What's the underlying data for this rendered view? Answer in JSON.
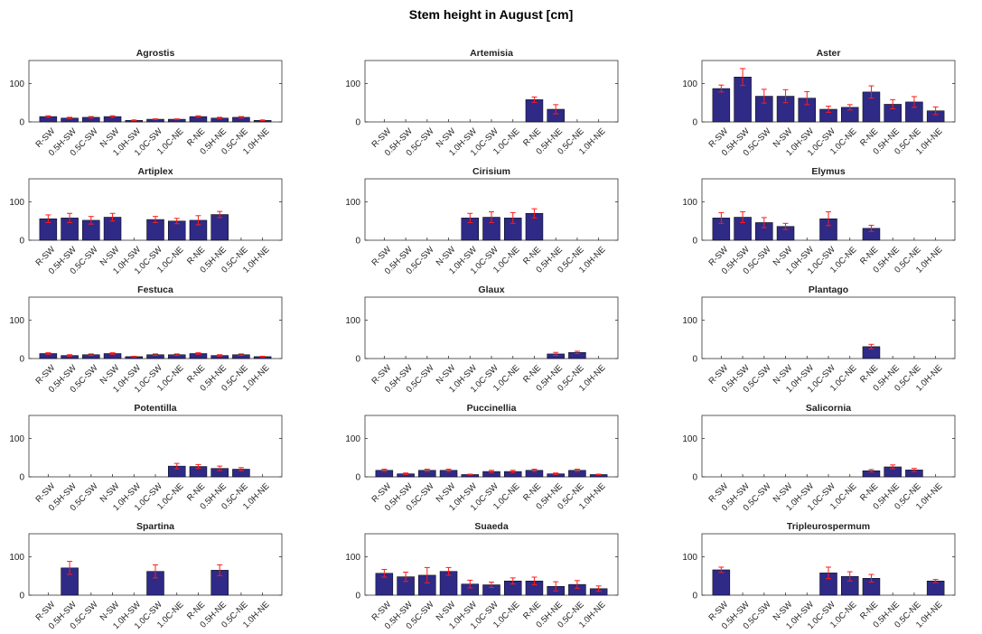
{
  "figure_title": "Stem height in August [cm]",
  "chart_data": {
    "type": "bar",
    "categories": [
      "R-SW",
      "0.5H-SW",
      "0.5C-SW",
      "N-SW",
      "1.0H-SW",
      "1.0C-SW",
      "1.0C-NE",
      "R-NE",
      "0.5H-NE",
      "0.5C-NE",
      "1.0H-NE"
    ],
    "ylim": [
      0,
      160
    ],
    "yticks": [
      0,
      100
    ],
    "colors": {
      "bar": "#2e2a86",
      "error": "#ff1a1a",
      "axis": "#333333"
    },
    "panels": [
      {
        "title": "Agrostis",
        "values": [
          14,
          10,
          12,
          14,
          4,
          7,
          7,
          14,
          10,
          12,
          4
        ],
        "errors": [
          2,
          2,
          2,
          2,
          1,
          1,
          1,
          2,
          2,
          2,
          1
        ]
      },
      {
        "title": "Artemisia",
        "values": [
          null,
          null,
          null,
          null,
          null,
          null,
          null,
          58,
          33,
          null,
          null
        ],
        "errors": [
          null,
          null,
          null,
          null,
          null,
          null,
          null,
          7,
          12,
          null,
          null
        ]
      },
      {
        "title": "Aster",
        "values": [
          87,
          117,
          67,
          67,
          62,
          33,
          38,
          78,
          46,
          52,
          29
        ],
        "errors": [
          9,
          22,
          18,
          17,
          17,
          8,
          7,
          16,
          12,
          14,
          10
        ]
      },
      {
        "title": "Artiplex",
        "values": [
          56,
          58,
          52,
          60,
          null,
          54,
          50,
          52,
          67,
          null,
          null
        ],
        "errors": [
          10,
          12,
          10,
          10,
          null,
          8,
          7,
          12,
          8,
          null,
          null
        ]
      },
      {
        "title": "Cirisium",
        "values": [
          null,
          null,
          null,
          null,
          58,
          60,
          58,
          70,
          null,
          null,
          null
        ],
        "errors": [
          null,
          null,
          null,
          null,
          12,
          14,
          14,
          12,
          null,
          null,
          null
        ]
      },
      {
        "title": "Elymus",
        "values": [
          58,
          60,
          46,
          36,
          null,
          56,
          null,
          31,
          null,
          null,
          null
        ],
        "errors": [
          14,
          14,
          13,
          8,
          null,
          18,
          null,
          8,
          null,
          null,
          null
        ]
      },
      {
        "title": "Festuca",
        "values": [
          13,
          8,
          10,
          13,
          5,
          10,
          10,
          13,
          8,
          10,
          5
        ],
        "errors": [
          2,
          2,
          2,
          2,
          1,
          2,
          2,
          2,
          2,
          2,
          1
        ]
      },
      {
        "title": "Glaux",
        "values": [
          null,
          null,
          null,
          null,
          null,
          null,
          null,
          null,
          12,
          16,
          null
        ],
        "errors": [
          null,
          null,
          null,
          null,
          null,
          null,
          null,
          null,
          4,
          3,
          null
        ]
      },
      {
        "title": "Plantago",
        "values": [
          null,
          null,
          null,
          null,
          null,
          null,
          null,
          31,
          null,
          null,
          null
        ],
        "errors": [
          null,
          null,
          null,
          null,
          null,
          null,
          null,
          6,
          null,
          null,
          null
        ]
      },
      {
        "title": "Potentilla",
        "values": [
          null,
          null,
          null,
          null,
          null,
          null,
          28,
          27,
          22,
          20,
          null
        ],
        "errors": [
          null,
          null,
          null,
          null,
          null,
          null,
          7,
          5,
          6,
          4,
          null
        ]
      },
      {
        "title": "Puccinellia",
        "values": [
          17,
          8,
          17,
          17,
          6,
          14,
          14,
          17,
          8,
          17,
          6
        ],
        "errors": [
          3,
          2,
          3,
          3,
          1,
          3,
          3,
          3,
          2,
          3,
          1
        ]
      },
      {
        "title": "Salicornia",
        "values": [
          null,
          null,
          null,
          null,
          null,
          null,
          null,
          16,
          26,
          18,
          null
        ],
        "errors": [
          null,
          null,
          null,
          null,
          null,
          null,
          null,
          3,
          5,
          4,
          null
        ]
      },
      {
        "title": "Spartina",
        "values": [
          null,
          71,
          null,
          null,
          null,
          62,
          null,
          null,
          65,
          null,
          null
        ],
        "errors": [
          null,
          17,
          null,
          null,
          null,
          17,
          null,
          null,
          14,
          null,
          null
        ]
      },
      {
        "title": "Suaeda",
        "values": [
          57,
          48,
          52,
          62,
          29,
          27,
          37,
          37,
          23,
          28,
          17
        ],
        "errors": [
          10,
          12,
          20,
          10,
          10,
          7,
          8,
          10,
          12,
          10,
          7
        ]
      },
      {
        "title": "Tripleurospermum",
        "values": [
          66,
          null,
          null,
          null,
          null,
          58,
          49,
          44,
          null,
          null,
          37
        ],
        "errors": [
          7,
          null,
          null,
          null,
          null,
          15,
          12,
          10,
          null,
          null,
          4
        ]
      }
    ]
  }
}
